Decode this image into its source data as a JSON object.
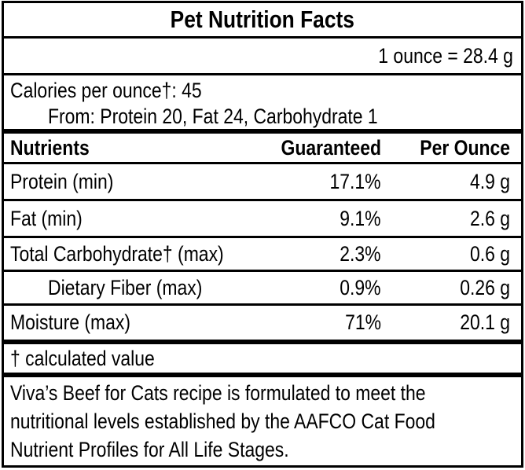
{
  "label": {
    "title": "Pet Nutrition Facts",
    "serving_equivalence": "1 ounce = 28.4 g",
    "calories_line": "Calories per ounce†: 45",
    "calories_from_line": "From: Protein 20, Fat 24, Carbohydrate 1",
    "footnote": "† calculated value",
    "statement_lines": [
      "Viva’s Beef for Cats recipe is formulated to meet the",
      "nutritional levels established by the AAFCO Cat Food",
      "Nutrient Profiles for All Life Stages."
    ]
  },
  "table": {
    "headers": {
      "nutrient": "Nutrients",
      "guaranteed": "Guaranteed",
      "per_ounce": "Per Ounce"
    },
    "rows": [
      {
        "nutrient": "Protein (min)",
        "guaranteed": "17.1%",
        "per_ounce": "4.9 g"
      },
      {
        "nutrient": "Fat (min)",
        "guaranteed": "9.1%",
        "per_ounce": "2.6 g"
      },
      {
        "nutrient": "Total Carbohydrate† (max)",
        "guaranteed": "2.3%",
        "per_ounce": "0.6 g"
      },
      {
        "nutrient": "Dietary Fiber (max)",
        "guaranteed": "0.9%",
        "per_ounce": "0.26 g",
        "indented": true
      },
      {
        "nutrient": "Moisture (max)",
        "guaranteed": "71%",
        "per_ounce": "20.1 g"
      }
    ]
  },
  "colors": {
    "border": "#000000",
    "text": "#000000",
    "background": "#ffffff"
  }
}
